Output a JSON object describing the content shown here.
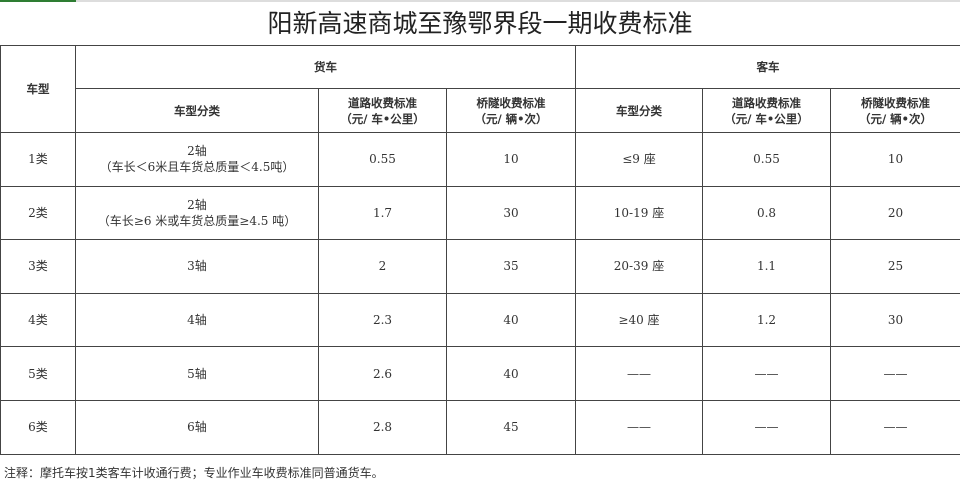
{
  "title": "阳新高速商城至豫鄂界段一期收费标准",
  "header": {
    "vehicle_type": "车型",
    "truck": "货车",
    "bus": "客车",
    "truck_cols": [
      "车型分类",
      "道路收费标准",
      "（元/ 车•公里）",
      "桥隧收费标准",
      "（元/ 辆•次）"
    ],
    "bus_cols": [
      "车型分类",
      "道路收费标准",
      "（元/ 车•公里）",
      "桥隧收费标准",
      "（元/ 辆•次）"
    ]
  },
  "rows": [
    {
      "type": "1类",
      "truck_class": "2轴",
      "truck_note": "（车长＜6米且车货总质量＜4.5吨）",
      "truck_road": "0.55",
      "truck_bridge": "10",
      "bus_class": "≤9 座",
      "bus_road": "0.55",
      "bus_bridge": "10"
    },
    {
      "type": "2类",
      "truck_class": "2轴",
      "truck_note": "（车长≥6 米或车货总质量≥4.5 吨）",
      "truck_road": "1.7",
      "truck_bridge": "30",
      "bus_class": "10-19 座",
      "bus_road": "0.8",
      "bus_bridge": "20"
    },
    {
      "type": "3类",
      "truck_class": "3轴",
      "truck_note": "",
      "truck_road": "2",
      "truck_bridge": "35",
      "bus_class": "20-39 座",
      "bus_road": "1.1",
      "bus_bridge": "25"
    },
    {
      "type": "4类",
      "truck_class": "4轴",
      "truck_note": "",
      "truck_road": "2.3",
      "truck_bridge": "40",
      "bus_class": "≥40 座",
      "bus_road": "1.2",
      "bus_bridge": "30"
    },
    {
      "type": "5类",
      "truck_class": "5轴",
      "truck_note": "",
      "truck_road": "2.6",
      "truck_bridge": "40",
      "bus_class": "——",
      "bus_road": "——",
      "bus_bridge": "——"
    },
    {
      "type": "6类",
      "truck_class": "6轴",
      "truck_note": "",
      "truck_road": "2.8",
      "truck_bridge": "45",
      "bus_class": "——",
      "bus_road": "——",
      "bus_bridge": "——"
    }
  ],
  "note": "注释：摩托车按1类客车计收通行费；专业作业车收费标准同普通货车。"
}
